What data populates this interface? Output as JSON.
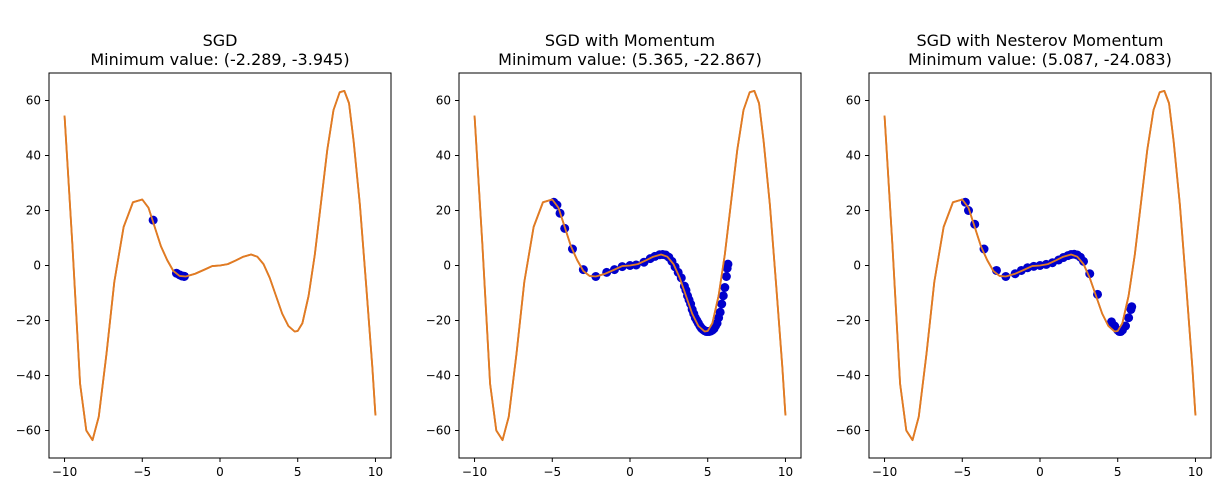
{
  "figure": {
    "background": "#ffffff",
    "curve_color": "#e07b24",
    "point_color": "#0000cc"
  },
  "chart_data": [
    {
      "type": "line",
      "title_line1": "SGD",
      "title_line2": "Minimum value: (-2.289, -3.945)",
      "xlim": [
        -11.0,
        11.0
      ],
      "ylim": [
        -70,
        70
      ],
      "xticks": [
        -10,
        -5,
        0,
        5,
        10
      ],
      "xtick_labels": [
        "−10",
        "−5",
        "0",
        "5",
        "10"
      ],
      "yticks": [
        -60,
        -40,
        -20,
        0,
        20,
        40,
        60
      ],
      "ytick_labels": [
        "−60",
        "−40",
        "−20",
        "0",
        "20",
        "40",
        "60"
      ],
      "curve": {
        "x": [
          -10.0,
          -9.5,
          -9.0,
          -8.6,
          -8.2,
          -7.8,
          -7.3,
          -6.8,
          -6.2,
          -5.6,
          -5.0,
          -4.6,
          -4.2,
          -3.8,
          -3.4,
          -3.0,
          -2.6,
          -2.2,
          -1.6,
          -1.0,
          -0.5,
          0.0,
          0.5,
          1.0,
          1.5,
          2.0,
          2.4,
          2.8,
          3.2,
          3.6,
          4.0,
          4.4,
          4.8,
          5.0,
          5.3,
          5.7,
          6.1,
          6.5,
          6.9,
          7.3,
          7.7,
          8.0,
          8.3,
          8.6,
          9.0,
          9.4,
          9.8,
          10.0
        ],
        "y": [
          54.5,
          8.0,
          -43.0,
          -60.0,
          -63.5,
          -55.0,
          -32.0,
          -6.0,
          14.0,
          23.0,
          24.0,
          21.0,
          14.0,
          7.0,
          2.0,
          -2.0,
          -3.8,
          -4.0,
          -3.0,
          -1.5,
          -0.2,
          0.0,
          0.5,
          1.8,
          3.2,
          4.0,
          3.2,
          0.5,
          -4.5,
          -11.0,
          -17.5,
          -22.0,
          -24.0,
          -23.8,
          -21.0,
          -11.0,
          4.0,
          23.0,
          42.0,
          56.5,
          63.0,
          63.5,
          59.0,
          45.0,
          22.0,
          -7.0,
          -37.0,
          -54.5
        ]
      },
      "points": {
        "x": [
          -4.3,
          -2.8,
          -2.6,
          -2.45,
          -2.35,
          -2.3,
          -2.29
        ],
        "y": [
          16.5,
          -2.8,
          -3.4,
          -3.8,
          -3.9,
          -3.94,
          -3.945
        ]
      }
    },
    {
      "type": "line",
      "title_line1": "SGD with Momentum",
      "title_line2": "Minimum value: (5.365, -22.867)",
      "xlim": [
        -11.0,
        11.0
      ],
      "ylim": [
        -70,
        70
      ],
      "xticks": [
        -10,
        -5,
        0,
        5,
        10
      ],
      "xtick_labels": [
        "−10",
        "−5",
        "0",
        "5",
        "10"
      ],
      "yticks": [
        -60,
        -40,
        -20,
        0,
        20,
        40,
        60
      ],
      "ytick_labels": [
        "−60",
        "−40",
        "−20",
        "0",
        "20",
        "40",
        "60"
      ],
      "curve": {
        "x": [
          -10.0,
          -9.5,
          -9.0,
          -8.6,
          -8.2,
          -7.8,
          -7.3,
          -6.8,
          -6.2,
          -5.6,
          -5.0,
          -4.6,
          -4.2,
          -3.8,
          -3.4,
          -3.0,
          -2.6,
          -2.2,
          -1.6,
          -1.0,
          -0.5,
          0.0,
          0.5,
          1.0,
          1.5,
          2.0,
          2.4,
          2.8,
          3.2,
          3.6,
          4.0,
          4.4,
          4.8,
          5.0,
          5.3,
          5.7,
          6.1,
          6.5,
          6.9,
          7.3,
          7.7,
          8.0,
          8.3,
          8.6,
          9.0,
          9.4,
          9.8,
          10.0
        ],
        "y": [
          54.5,
          8.0,
          -43.0,
          -60.0,
          -63.5,
          -55.0,
          -32.0,
          -6.0,
          14.0,
          23.0,
          24.0,
          21.0,
          14.0,
          7.0,
          2.0,
          -2.0,
          -3.8,
          -4.0,
          -3.0,
          -1.5,
          -0.2,
          0.0,
          0.5,
          1.8,
          3.2,
          4.0,
          3.2,
          0.5,
          -4.5,
          -11.0,
          -17.5,
          -22.0,
          -24.0,
          -23.8,
          -21.0,
          -11.0,
          4.0,
          23.0,
          42.0,
          56.5,
          63.0,
          63.5,
          59.0,
          45.0,
          22.0,
          -7.0,
          -37.0,
          -54.5
        ]
      },
      "points": {
        "x": [
          -4.9,
          -4.7,
          -4.5,
          -4.2,
          -3.7,
          -3.0,
          -2.2,
          -1.5,
          -1.0,
          -0.5,
          0.0,
          0.4,
          0.9,
          1.3,
          1.6,
          1.9,
          2.1,
          2.3,
          2.5,
          2.7,
          2.9,
          3.1,
          3.3,
          3.5,
          3.6,
          3.7,
          3.8,
          3.9,
          4.0,
          4.1,
          4.2,
          4.3,
          4.4,
          4.5,
          4.6,
          4.7,
          4.8,
          4.9,
          5.0,
          5.1,
          5.2,
          5.3,
          5.4,
          5.5,
          5.6,
          5.7,
          5.8,
          5.9,
          6.0,
          6.1,
          6.2,
          6.25,
          6.3
        ],
        "y": [
          23.0,
          22.0,
          19.0,
          13.5,
          6.0,
          -1.5,
          -4.0,
          -2.5,
          -1.5,
          -0.4,
          0.0,
          0.2,
          1.2,
          2.5,
          3.3,
          3.9,
          4.0,
          3.8,
          3.0,
          1.5,
          -0.5,
          -2.5,
          -4.5,
          -7.5,
          -9.0,
          -11.0,
          -12.5,
          -14.0,
          -16.0,
          -17.5,
          -19.0,
          -20.0,
          -21.0,
          -22.0,
          -22.8,
          -23.3,
          -23.7,
          -24.0,
          -24.0,
          -24.0,
          -23.8,
          -23.5,
          -23.0,
          -22.0,
          -21.0,
          -19.0,
          -17.0,
          -14.0,
          -11.0,
          -8.0,
          -4.0,
          -1.0,
          0.5
        ]
      }
    },
    {
      "type": "line",
      "title_line1": "SGD with Nesterov Momentum",
      "title_line2": "Minimum value: (5.087, -24.083)",
      "xlim": [
        -11.0,
        11.0
      ],
      "ylim": [
        -70,
        70
      ],
      "xticks": [
        -10,
        -5,
        0,
        5,
        10
      ],
      "xtick_labels": [
        "−10",
        "−5",
        "0",
        "5",
        "10"
      ],
      "yticks": [
        -60,
        -40,
        -20,
        0,
        20,
        40,
        60
      ],
      "ytick_labels": [
        "−60",
        "−40",
        "−20",
        "0",
        "20",
        "40",
        "60"
      ],
      "curve": {
        "x": [
          -10.0,
          -9.5,
          -9.0,
          -8.6,
          -8.2,
          -7.8,
          -7.3,
          -6.8,
          -6.2,
          -5.6,
          -5.0,
          -4.6,
          -4.2,
          -3.8,
          -3.4,
          -3.0,
          -2.6,
          -2.2,
          -1.6,
          -1.0,
          -0.5,
          0.0,
          0.5,
          1.0,
          1.5,
          2.0,
          2.4,
          2.8,
          3.2,
          3.6,
          4.0,
          4.4,
          4.8,
          5.0,
          5.3,
          5.7,
          6.1,
          6.5,
          6.9,
          7.3,
          7.7,
          8.0,
          8.3,
          8.6,
          9.0,
          9.4,
          9.8,
          10.0
        ],
        "y": [
          54.5,
          8.0,
          -43.0,
          -60.0,
          -63.5,
          -55.0,
          -32.0,
          -6.0,
          14.0,
          23.0,
          24.0,
          21.0,
          14.0,
          7.0,
          2.0,
          -2.0,
          -3.8,
          -4.0,
          -3.0,
          -1.5,
          -0.2,
          0.0,
          0.5,
          1.8,
          3.2,
          4.0,
          3.2,
          0.5,
          -4.5,
          -11.0,
          -17.5,
          -22.0,
          -24.0,
          -23.8,
          -21.0,
          -11.0,
          4.0,
          23.0,
          42.0,
          56.5,
          63.0,
          63.5,
          59.0,
          45.0,
          22.0,
          -7.0,
          -37.0,
          -54.5
        ]
      },
      "points": {
        "x": [
          -4.8,
          -4.6,
          -4.2,
          -3.6,
          -2.8,
          -2.2,
          -1.6,
          -1.2,
          -0.8,
          -0.4,
          0.0,
          0.4,
          0.8,
          1.2,
          1.5,
          1.8,
          2.0,
          2.2,
          2.4,
          2.6,
          2.8,
          3.2,
          3.7,
          4.6,
          4.8,
          5.0,
          5.1,
          5.2,
          5.3,
          5.5,
          5.7,
          5.85,
          5.9
        ],
        "y": [
          23.0,
          20.0,
          15.0,
          6.0,
          -1.8,
          -4.0,
          -3.0,
          -1.8,
          -0.8,
          -0.3,
          0.0,
          0.4,
          1.0,
          2.0,
          2.9,
          3.6,
          4.0,
          4.1,
          3.8,
          3.0,
          1.5,
          -3.0,
          -10.5,
          -20.5,
          -22.0,
          -23.5,
          -24.0,
          -24.0,
          -23.5,
          -22.0,
          -19.0,
          -16.0,
          -15.0
        ]
      }
    }
  ]
}
